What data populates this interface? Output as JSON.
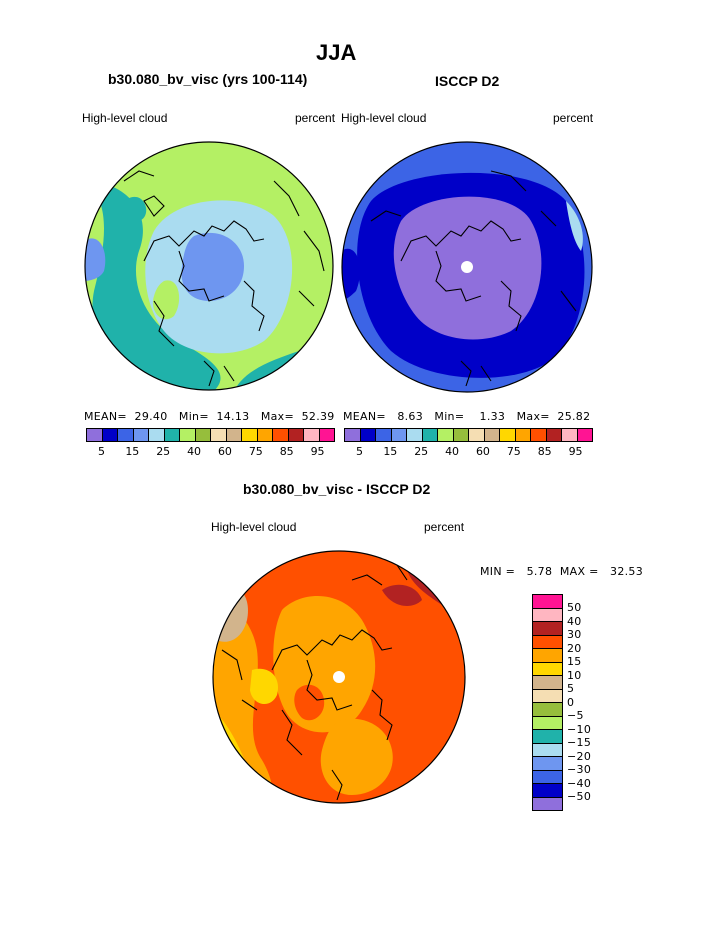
{
  "page": {
    "title": "JJA",
    "left_panel_title": "b30.080_bv_visc (yrs 100-114)",
    "right_panel_title": "ISCCP D2",
    "diff_title": "b30.080_bv_visc - ISCCP D2"
  },
  "panels": [
    {
      "variable": "High-level cloud",
      "units": "percent",
      "stats": {
        "mean_label": "MEAN=",
        "mean": "29.40",
        "min_label": "Min=",
        "min": "14.13",
        "max_label": "Max=",
        "max": "52.39"
      }
    },
    {
      "variable": "High-level cloud",
      "units": "percent",
      "stats": {
        "mean_label": "MEAN=",
        "mean": "8.63",
        "min_label": "Min=",
        "min": "1.33",
        "max_label": "Max=",
        "max": "25.82"
      }
    }
  ],
  "abs_colorbar": {
    "colors": [
      "#8f6fdc",
      "#0000c8",
      "#3c64e6",
      "#6e96f0",
      "#aadcf0",
      "#20b2aa",
      "#b4f064",
      "#96be3c",
      "#f5deb3",
      "#d2b48c",
      "#ffd700",
      "#ffa500",
      "#ff5000",
      "#b22222",
      "#ffb6c1",
      "#ff1493"
    ],
    "tick_labels": [
      "5",
      "15",
      "25",
      "40",
      "60",
      "75",
      "85",
      "95"
    ]
  },
  "diff": {
    "variable": "High-level cloud",
    "units": "percent",
    "min_label": "MIN =",
    "min": "5.78",
    "max_label": "MAX =",
    "max": "32.53",
    "colorbar_colors": [
      "#ff1493",
      "#ffb6c1",
      "#b22222",
      "#ff5000",
      "#ffa500",
      "#ffd700",
      "#d2b48c",
      "#f5deb3",
      "#96be3c",
      "#b4f064",
      "#20b2aa",
      "#aadcf0",
      "#6e96f0",
      "#3c64e6",
      "#0000c8",
      "#8f6fdc"
    ],
    "tick_labels": [
      "50",
      "40",
      "30",
      "20",
      "15",
      "10",
      "5",
      "0",
      "−5",
      "−10",
      "−15",
      "−20",
      "−30",
      "−40",
      "−50"
    ]
  }
}
